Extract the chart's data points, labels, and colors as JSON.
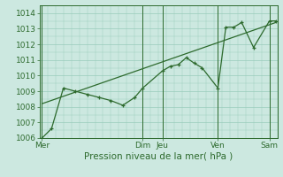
{
  "title": "",
  "xlabel": "Pression niveau de la mer( hPa )",
  "background_color": "#cce8e0",
  "grid_color": "#99ccbb",
  "line_color": "#2d6a2d",
  "ylim": [
    1006,
    1014.5
  ],
  "xlim": [
    0,
    30
  ],
  "day_labels": [
    "Mer",
    "Dim",
    "Jeu",
    "Ven",
    "Sam"
  ],
  "day_positions": [
    0.3,
    13.0,
    15.5,
    22.5,
    29.0
  ],
  "yticks": [
    1006,
    1007,
    1008,
    1009,
    1010,
    1011,
    1012,
    1013,
    1014
  ],
  "fontsize_label": 7.5,
  "fontsize_tick": 6.5,
  "line_width": 0.9,
  "marker_size": 3.5,
  "data_x": [
    0.3,
    1.5,
    3.0,
    4.5,
    6.0,
    7.5,
    9.0,
    10.5,
    12.0,
    13.0,
    15.5,
    16.5,
    17.5,
    18.5,
    19.5,
    20.5,
    22.5,
    23.5,
    24.5,
    25.5,
    27.0,
    29.0,
    29.8
  ],
  "data_y": [
    1006.0,
    1006.6,
    1009.2,
    1009.0,
    1008.8,
    1008.6,
    1008.4,
    1008.1,
    1008.6,
    1009.2,
    1010.3,
    1010.6,
    1010.7,
    1011.15,
    1010.8,
    1010.5,
    1009.2,
    1013.1,
    1013.1,
    1013.4,
    1011.8,
    1013.5,
    1013.5
  ],
  "trend_x": [
    0.3,
    29.8
  ],
  "trend_y": [
    1008.2,
    1013.4
  ]
}
